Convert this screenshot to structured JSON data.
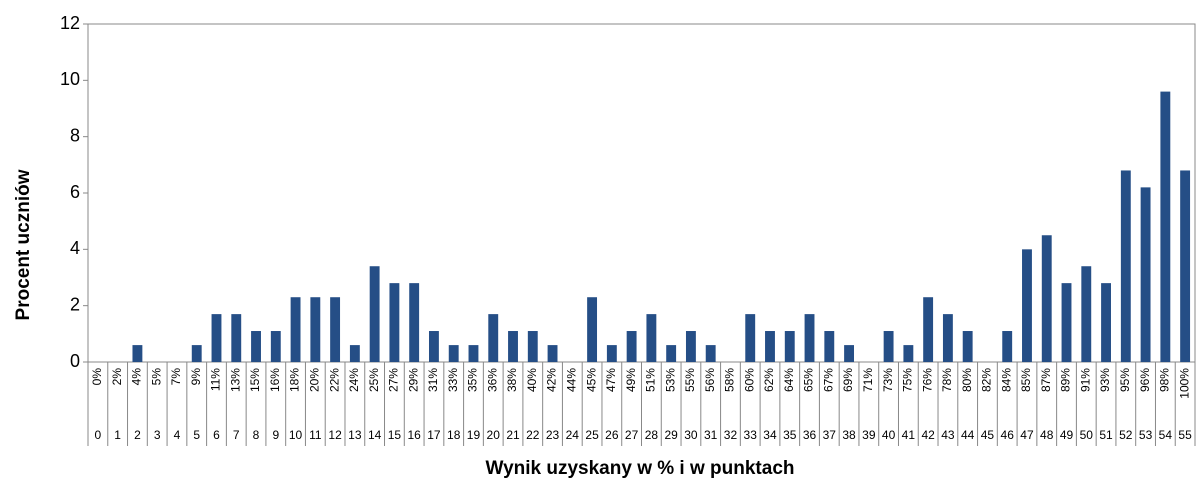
{
  "chart_data": {
    "type": "bar",
    "y_label": "Procent uczniów",
    "x_label": "Wynik uzyskany w % i w punktach",
    "categories": [
      "0",
      "1",
      "2",
      "3",
      "4",
      "5",
      "6",
      "7",
      "8",
      "9",
      "10",
      "11",
      "12",
      "13",
      "14",
      "15",
      "16",
      "17",
      "18",
      "19",
      "20",
      "21",
      "22",
      "23",
      "24",
      "25",
      "26",
      "27",
      "28",
      "29",
      "30",
      "31",
      "32",
      "33",
      "34",
      "35",
      "36",
      "37",
      "38",
      "39",
      "40",
      "41",
      "42",
      "43",
      "44",
      "45",
      "46",
      "47",
      "48",
      "49",
      "50",
      "51",
      "52",
      "53",
      "54",
      "55"
    ],
    "percent_labels": [
      "0%",
      "2%",
      "4%",
      "5%",
      "7%",
      "9%",
      "11%",
      "13%",
      "15%",
      "16%",
      "18%",
      "20%",
      "22%",
      "24%",
      "25%",
      "27%",
      "29%",
      "31%",
      "33%",
      "35%",
      "36%",
      "38%",
      "40%",
      "42%",
      "44%",
      "45%",
      "47%",
      "49%",
      "51%",
      "53%",
      "55%",
      "56%",
      "58%",
      "60%",
      "62%",
      "64%",
      "65%",
      "67%",
      "69%",
      "71%",
      "73%",
      "75%",
      "76%",
      "78%",
      "80%",
      "82%",
      "84%",
      "85%",
      "87%",
      "89%",
      "91%",
      "93%",
      "95%",
      "96%",
      "98%",
      "100%"
    ],
    "values": [
      0,
      0,
      0.6,
      0,
      0,
      0.6,
      1.7,
      1.7,
      1.1,
      1.1,
      2.3,
      2.3,
      2.3,
      0.6,
      3.4,
      2.8,
      2.8,
      1.1,
      0.6,
      0.6,
      1.7,
      1.1,
      1.1,
      0.6,
      0,
      2.3,
      0.6,
      1.1,
      1.7,
      0.6,
      1.1,
      0.6,
      0,
      1.7,
      1.1,
      1.1,
      1.7,
      1.1,
      0.6,
      0,
      1.1,
      0.6,
      2.3,
      1.7,
      1.1,
      0,
      1.1,
      4.0,
      4.5,
      2.8,
      3.4,
      2.8,
      6.8,
      6.2,
      9.6,
      6.8
    ],
    "color": "#254e86",
    "ylim": [
      0,
      12
    ],
    "yticks": [
      0,
      2,
      4,
      6,
      8,
      10,
      12
    ],
    "grid": false
  }
}
